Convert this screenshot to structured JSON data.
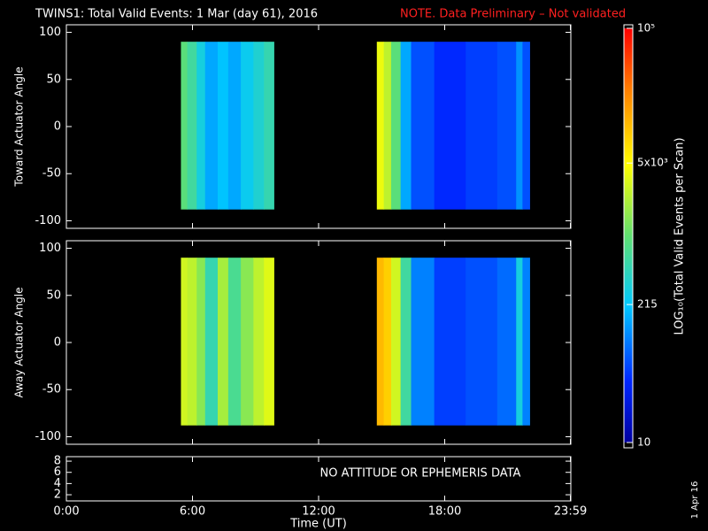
{
  "chart_data": {
    "type": "heatmap",
    "title": "TWINS1: Total Valid Events:  1 Mar (day  61), 2016",
    "note": "NOTE. Data Preliminary – Not validated",
    "x_label": "Time (UT)",
    "xlim": [
      0,
      24
    ],
    "xticks": [
      {
        "value": 0,
        "label": "0:00"
      },
      {
        "value": 6,
        "label": "6:00"
      },
      {
        "value": 12,
        "label": "12:00"
      },
      {
        "value": 18,
        "label": "18:00"
      },
      {
        "value": 23.98,
        "label": "23:59"
      }
    ],
    "panels": [
      {
        "y_label": "Toward Actuator Angle",
        "ylim": [
          -108,
          108
        ],
        "yticks": [
          100,
          50,
          0,
          -50,
          -100
        ],
        "y_range": [
          -88,
          90
        ],
        "bins": [
          5.45,
          5.75,
          6.2,
          6.6,
          7.2,
          7.7,
          8.3,
          8.9,
          9.4,
          9.87,
          14.77,
          15.1,
          15.45,
          15.9,
          16.4,
          17.5,
          19.0,
          20.5,
          21.4,
          21.7,
          22.04
        ],
        "values": [
          900,
          600,
          300,
          150,
          200,
          150,
          250,
          350,
          500,
          null,
          4000,
          2500,
          900,
          150,
          60,
          40,
          50,
          60,
          120,
          60
        ]
      },
      {
        "y_label": "Away Actuator Angle",
        "ylim": [
          -108,
          108
        ],
        "yticks": [
          100,
          50,
          0,
          -50,
          -100
        ],
        "y_range": [
          -88,
          90
        ],
        "bins": [
          5.45,
          5.75,
          6.2,
          6.6,
          7.2,
          7.7,
          8.3,
          8.9,
          9.4,
          9.87,
          14.77,
          15.1,
          15.45,
          15.9,
          16.4,
          17.5,
          19.0,
          20.5,
          21.4,
          21.7,
          22.04
        ],
        "values": [
          3000,
          2500,
          1500,
          500,
          2000,
          700,
          1500,
          2500,
          3500,
          null,
          12000,
          9000,
          3000,
          600,
          100,
          50,
          60,
          80,
          300,
          100
        ]
      }
    ],
    "status_panel": {
      "ylim": [
        0.9,
        8.8
      ],
      "yticks": [
        8,
        6,
        4,
        2
      ],
      "annotation": "NO ATTITUDE OR EPHEMERIS DATA"
    },
    "colorbar": {
      "label": "LOG₁₀(Total Valid Events per Scan)",
      "log": true,
      "lim": [
        10,
        100000
      ],
      "ticks": [
        {
          "value": 10,
          "label": "10"
        },
        {
          "value": 215,
          "label": "215"
        },
        {
          "value": 5000,
          "label": "5x10³"
        },
        {
          "value": 100000,
          "label": "10⁵"
        }
      ]
    },
    "date_stamp": "1 Apr 16"
  }
}
